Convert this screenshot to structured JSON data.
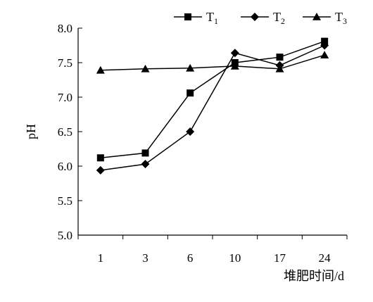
{
  "chart_data": {
    "type": "line",
    "categories": [
      "1",
      "3",
      "6",
      "10",
      "17",
      "24"
    ],
    "series": [
      {
        "name": "T1",
        "name_main": "T",
        "name_sub": "1",
        "marker": "square",
        "values": [
          6.12,
          6.19,
          7.06,
          7.5,
          7.58,
          7.81
        ]
      },
      {
        "name": "T2",
        "name_main": "T",
        "name_sub": "2",
        "marker": "diamond",
        "values": [
          5.94,
          6.03,
          6.5,
          7.64,
          7.46,
          7.75
        ]
      },
      {
        "name": "T3",
        "name_main": "T",
        "name_sub": "3",
        "marker": "triangle",
        "values": [
          7.39,
          7.41,
          7.42,
          7.45,
          7.41,
          7.61
        ]
      }
    ],
    "ylabel": "pH",
    "xlabel": "堆肥时间/d",
    "ylim": [
      5.0,
      8.0
    ],
    "yticks": [
      "5.0",
      "5.5",
      "6.0",
      "6.5",
      "7.0",
      "7.5",
      "8.0"
    ],
    "grid": false,
    "legend_position": "top-right"
  }
}
